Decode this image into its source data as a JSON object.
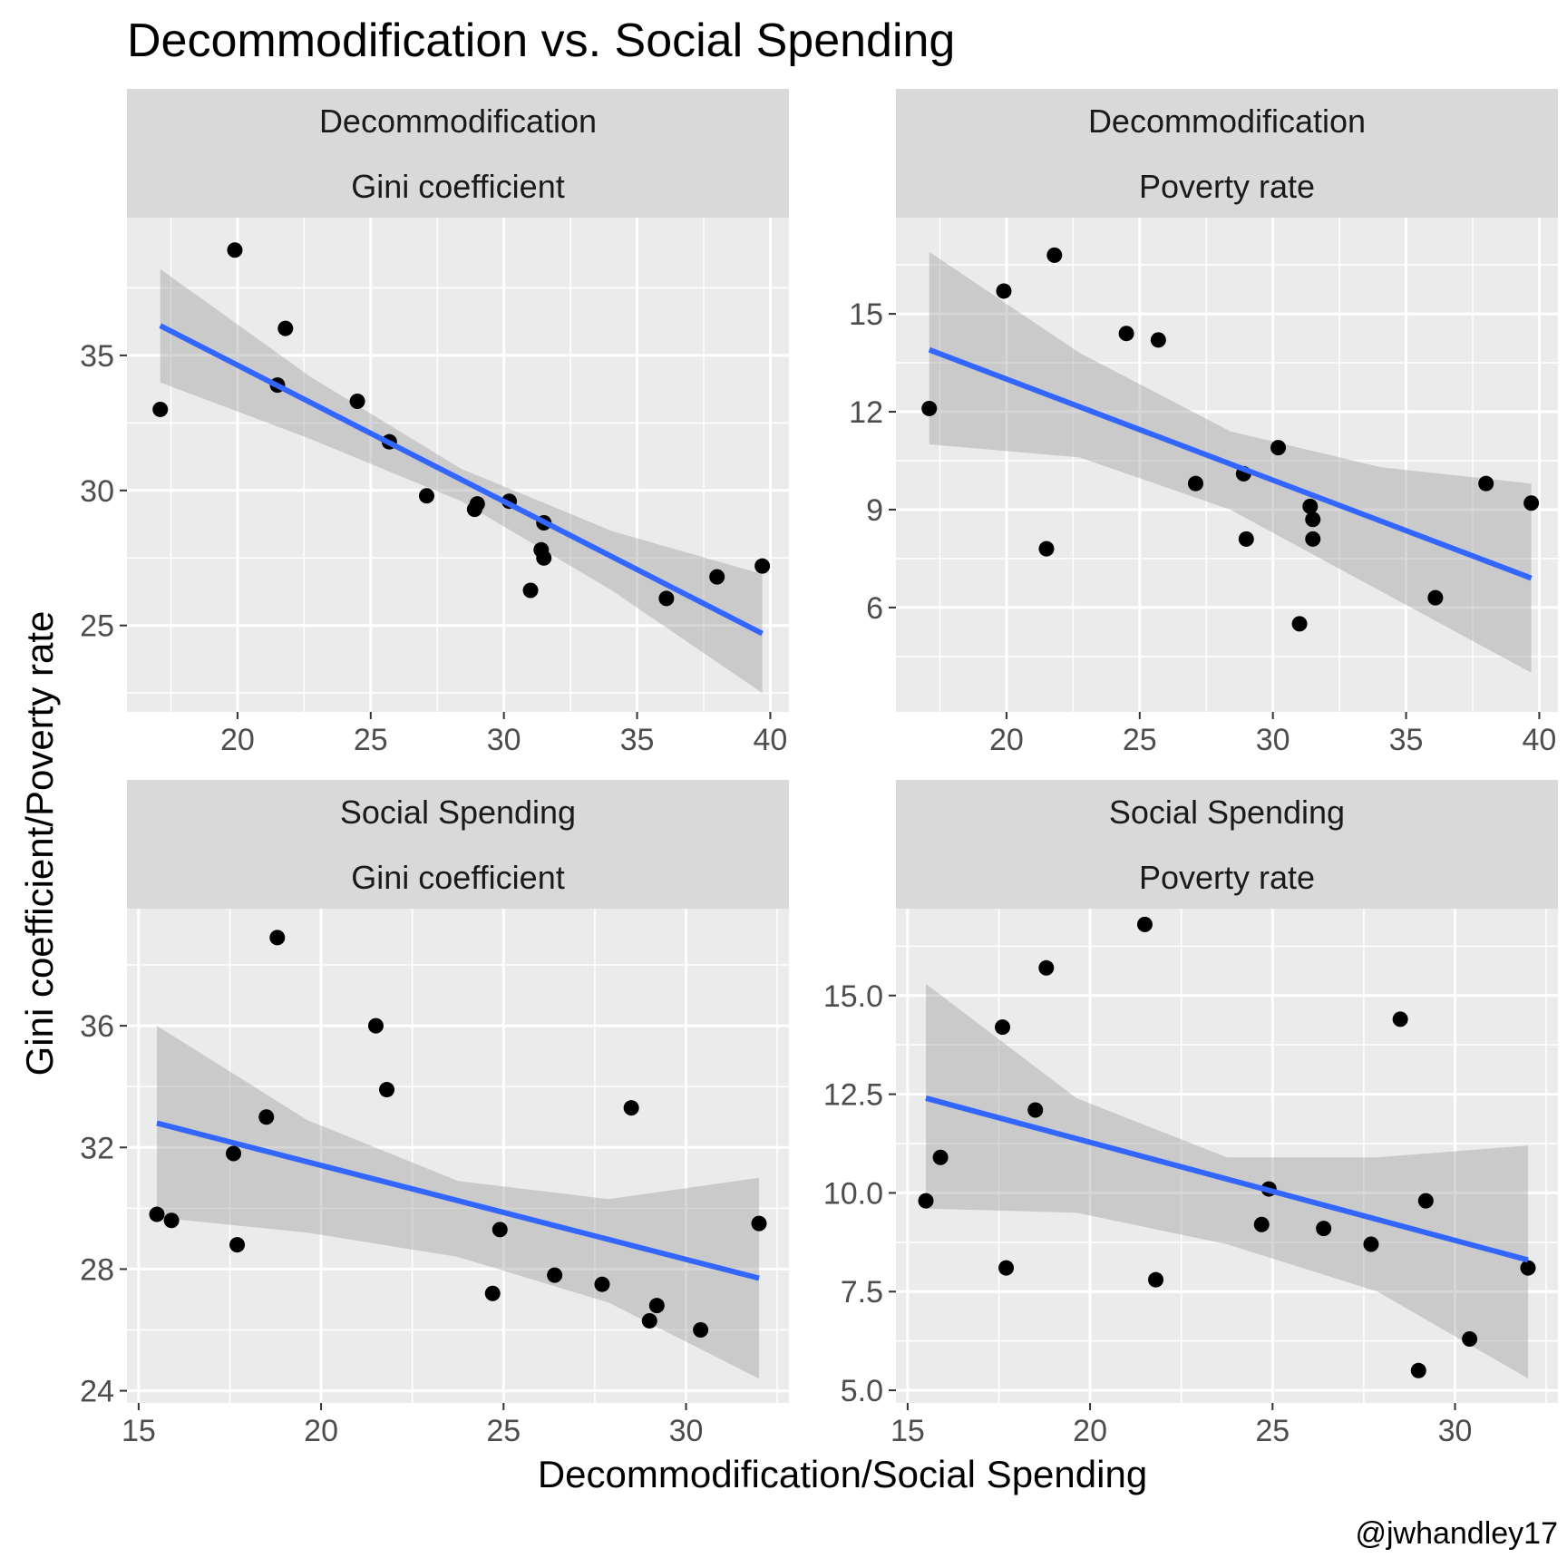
{
  "chart_data": {
    "type": "scatter",
    "title": "Decommodification vs. Social Spending",
    "xlabel": "Decommodification/Social Spending",
    "ylabel": "Gini coefficient/Poverty rate",
    "caption": "@jwhandley17",
    "grid": true,
    "colors": {
      "panel_background": "#ebebeb",
      "strip_background": "#d9d9d9",
      "grid": "#ffffff",
      "points": "#000000",
      "fit_line": "#3366ff",
      "ribbon": "#999999"
    },
    "panels": [
      {
        "strips": [
          "Decommodification",
          "Gini coefficient"
        ],
        "xlim": [
          15.85,
          40.7
        ],
        "ylim": [
          21.8,
          40.1
        ],
        "xticks": [
          20,
          25,
          30,
          35,
          40
        ],
        "xtick_labels": [
          "20",
          "25",
          "30",
          "35",
          "40"
        ],
        "yticks": [
          25,
          30,
          35
        ],
        "ytick_labels": [
          "25",
          "30",
          "35"
        ],
        "points": {
          "x": [
            17.1,
            19.9,
            21.5,
            21.8,
            24.5,
            25.7,
            27.1,
            28.9,
            29.0,
            30.2,
            31.0,
            31.4,
            31.5,
            31.5,
            36.1,
            38.0,
            39.7
          ],
          "y": [
            33.0,
            38.9,
            33.9,
            36.0,
            33.3,
            31.8,
            29.8,
            29.3,
            29.5,
            29.6,
            26.3,
            27.8,
            28.8,
            27.5,
            26.0,
            26.8,
            27.2
          ]
        },
        "fit": {
          "x": [
            17.1,
            39.7
          ],
          "y": [
            36.1,
            24.7
          ]
        },
        "ribbon": {
          "x": [
            17.1,
            22.75,
            28.4,
            34.05,
            39.7
          ],
          "upper": [
            38.2,
            34.2,
            30.8,
            28.5,
            26.9
          ],
          "lower": [
            34.0,
            31.9,
            29.6,
            26.3,
            22.5
          ]
        }
      },
      {
        "strips": [
          "Decommodification",
          "Poverty rate"
        ],
        "xlim": [
          15.85,
          40.7
        ],
        "ylim": [
          2.8,
          17.95
        ],
        "xticks": [
          20,
          25,
          30,
          35,
          40
        ],
        "xtick_labels": [
          "20",
          "25",
          "30",
          "35",
          "40"
        ],
        "yticks": [
          6,
          9,
          12,
          15
        ],
        "ytick_labels": [
          "6",
          "9",
          "12",
          "15"
        ],
        "points": {
          "x": [
            17.1,
            19.9,
            21.5,
            21.8,
            24.5,
            25.7,
            27.1,
            28.9,
            29.0,
            30.2,
            31.0,
            31.4,
            31.5,
            31.5,
            36.1,
            38.0,
            39.7
          ],
          "y": [
            12.1,
            15.7,
            7.8,
            16.8,
            14.4,
            14.2,
            9.8,
            10.1,
            8.1,
            10.9,
            5.5,
            9.1,
            8.1,
            8.7,
            6.3,
            9.8,
            9.2
          ]
        },
        "fit": {
          "x": [
            17.1,
            39.7
          ],
          "y": [
            13.9,
            6.9
          ]
        },
        "ribbon": {
          "x": [
            17.1,
            22.75,
            28.4,
            34.05,
            39.7
          ],
          "upper": [
            16.9,
            13.8,
            11.4,
            10.3,
            9.8
          ],
          "lower": [
            11.0,
            10.6,
            9.0,
            6.5,
            4.0
          ]
        }
      },
      {
        "strips": [
          "Social Spending",
          "Gini coefficient"
        ],
        "xlim": [
          14.68,
          32.82
        ],
        "ylim": [
          23.6,
          39.85
        ],
        "xticks": [
          15,
          20,
          25,
          30
        ],
        "xtick_labels": [
          "15",
          "20",
          "25",
          "30"
        ],
        "yticks": [
          24,
          28,
          32,
          36
        ],
        "ytick_labels": [
          "24",
          "28",
          "32",
          "36"
        ],
        "points": {
          "x": [
            15.5,
            15.9,
            17.6,
            17.7,
            18.5,
            18.8,
            21.5,
            21.8,
            24.7,
            24.9,
            26.4,
            27.7,
            28.5,
            29.0,
            29.2,
            30.4,
            32.0
          ],
          "y": [
            29.8,
            29.6,
            31.8,
            28.8,
            33.0,
            38.9,
            36.0,
            33.9,
            27.2,
            29.3,
            27.8,
            27.5,
            33.3,
            26.3,
            26.8,
            26.0,
            29.5
          ]
        },
        "fit": {
          "x": [
            15.5,
            32.0
          ],
          "y": [
            32.8,
            27.7
          ]
        },
        "ribbon": {
          "x": [
            15.5,
            19.625,
            23.75,
            27.875,
            32.0
          ],
          "upper": [
            36.0,
            32.9,
            30.9,
            30.3,
            31.0
          ],
          "lower": [
            29.7,
            29.2,
            28.4,
            26.9,
            24.4
          ]
        }
      },
      {
        "strips": [
          "Social Spending",
          "Poverty rate"
        ],
        "xlim": [
          14.68,
          32.82
        ],
        "ylim": [
          4.68,
          17.2
        ],
        "xticks": [
          15,
          20,
          25,
          30
        ],
        "xtick_labels": [
          "15",
          "20",
          "25",
          "30"
        ],
        "yticks": [
          5.0,
          7.5,
          10.0,
          12.5,
          15.0
        ],
        "ytick_labels": [
          "5.0",
          "7.5",
          "10.0",
          "12.5",
          "15.0"
        ],
        "points": {
          "x": [
            15.5,
            15.9,
            17.6,
            17.7,
            18.5,
            18.8,
            21.5,
            21.8,
            24.7,
            24.9,
            26.4,
            27.7,
            28.5,
            29.0,
            29.2,
            30.4,
            32.0
          ],
          "y": [
            9.8,
            10.9,
            14.2,
            8.1,
            12.1,
            15.7,
            16.8,
            7.8,
            9.2,
            10.1,
            9.1,
            8.7,
            14.4,
            5.5,
            9.8,
            6.3,
            8.1
          ]
        },
        "fit": {
          "x": [
            15.5,
            32.0
          ],
          "y": [
            12.4,
            8.3
          ]
        },
        "ribbon": {
          "x": [
            15.5,
            19.625,
            23.75,
            27.875,
            32.0
          ],
          "upper": [
            15.3,
            12.4,
            10.9,
            10.9,
            11.2
          ],
          "lower": [
            9.6,
            9.5,
            8.7,
            7.5,
            5.3
          ]
        }
      }
    ]
  }
}
